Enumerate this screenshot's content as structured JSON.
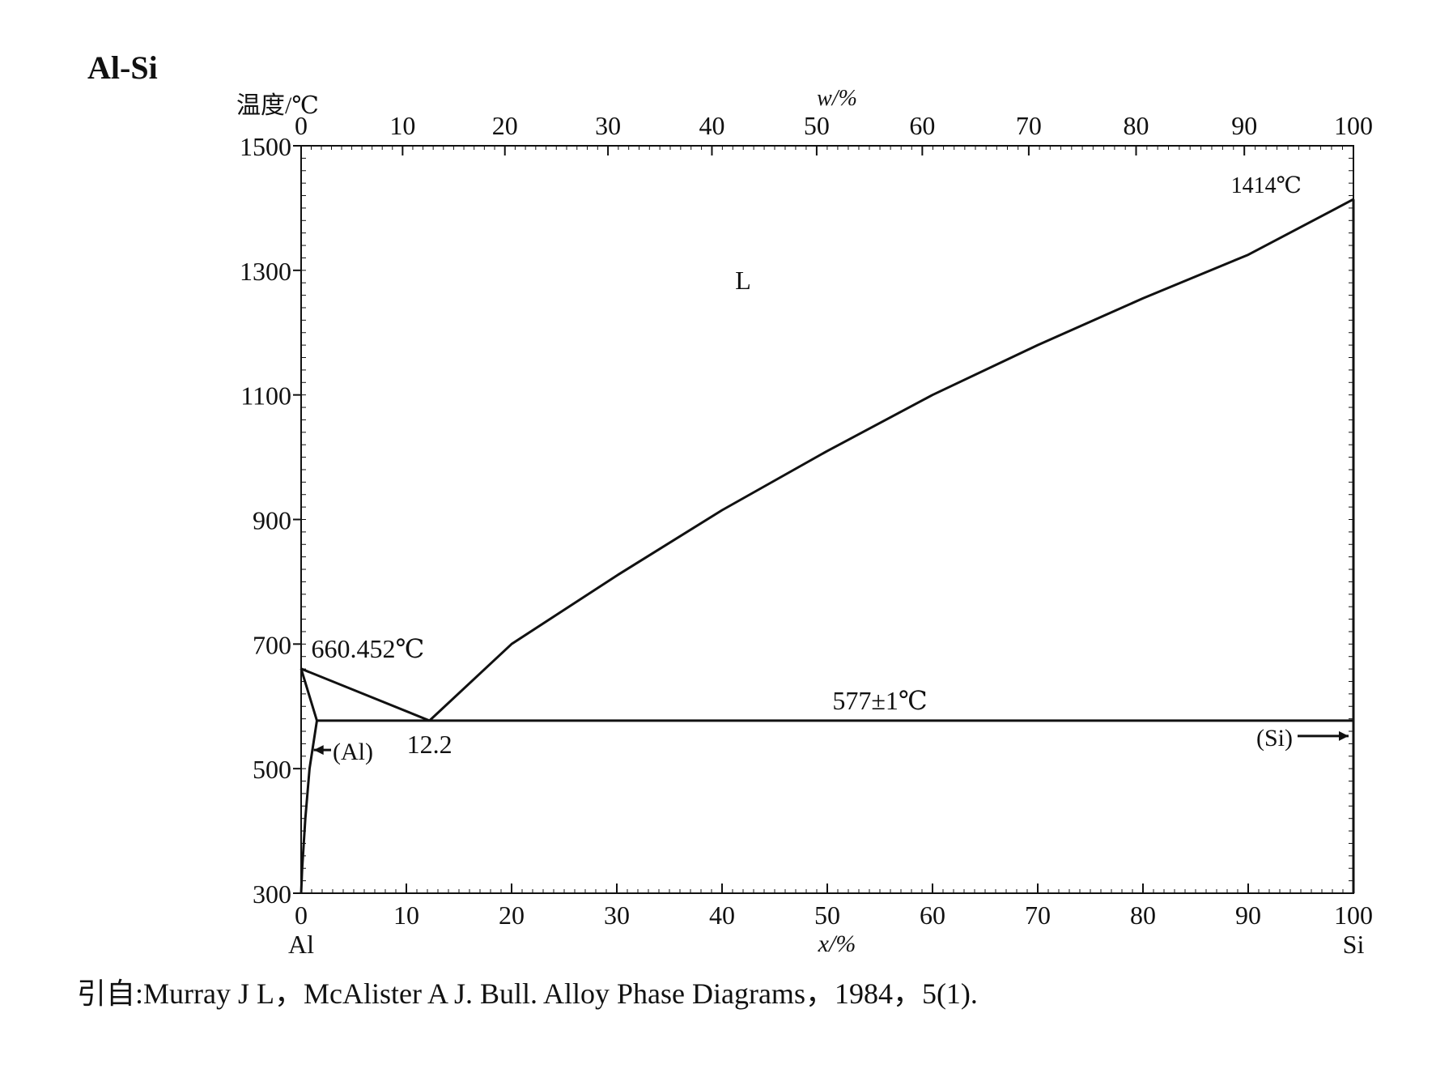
{
  "title": "Al-Si",
  "citation": "引自:Murray J L，McAlister A J. Bull. Alloy Phase Diagrams，1984，5(1).",
  "chart_data": {
    "type": "line",
    "title": "Al-Si",
    "ylabel": "温度/℃",
    "xlabel_bottom": "x/%",
    "xlabel_top": "w/%",
    "ylim": [
      300,
      1500
    ],
    "xlim": [
      0,
      100
    ],
    "y_ticks": [
      1500,
      1300,
      1100,
      900,
      700,
      500,
      300
    ],
    "x_ticks_bottom": [
      0,
      10,
      20,
      30,
      40,
      50,
      60,
      70,
      80,
      90,
      100
    ],
    "x_ticks_top": [
      0,
      10,
      20,
      30,
      40,
      50,
      60,
      70,
      80,
      90,
      100
    ],
    "element_labels": {
      "left": "Al",
      "right": "Si"
    },
    "series": [
      {
        "name": "L",
        "role": "liquidus-Al",
        "x": [
          0,
          12.2
        ],
        "y": [
          660.452,
          577
        ]
      },
      {
        "name": "L",
        "role": "liquidus-Si",
        "x": [
          12.2,
          20,
          30,
          40,
          50,
          60,
          70,
          80,
          90,
          100
        ],
        "y": [
          577,
          700,
          810,
          915,
          1010,
          1100,
          1180,
          1255,
          1325,
          1414
        ]
      },
      {
        "name": "eutectic",
        "role": "eutectic-isotherm",
        "x": [
          1.5,
          100
        ],
        "y": [
          577,
          577
        ]
      },
      {
        "name": "(Al)",
        "role": "solidus-Al",
        "x": [
          0,
          1.5
        ],
        "y": [
          660.452,
          577
        ]
      },
      {
        "name": "(Al)",
        "role": "solvus-Al",
        "x": [
          1.5,
          0.8,
          0.4,
          0.1,
          0
        ],
        "y": [
          577,
          500,
          420,
          340,
          300
        ]
      },
      {
        "name": "(Si)",
        "role": "Si-boundary",
        "x": [
          100,
          100
        ],
        "y": [
          1414,
          300
        ]
      }
    ],
    "annotations": [
      {
        "text": "1414℃",
        "x": 96,
        "y": 1414
      },
      {
        "text": "L",
        "x": 42,
        "y": 1270
      },
      {
        "text": "660.452℃",
        "x": 0.5,
        "y": 660.452
      },
      {
        "text": "577±1℃",
        "x": 55,
        "y": 577
      },
      {
        "text": "12.2",
        "x": 12.2,
        "y": 577
      },
      {
        "text": "(Al)",
        "x": 3,
        "y": 530
      },
      {
        "text": "(Si)",
        "x": 95,
        "y": 555
      }
    ],
    "grid": false,
    "colors": {
      "line": "#111111",
      "background": "#ffffff"
    }
  }
}
